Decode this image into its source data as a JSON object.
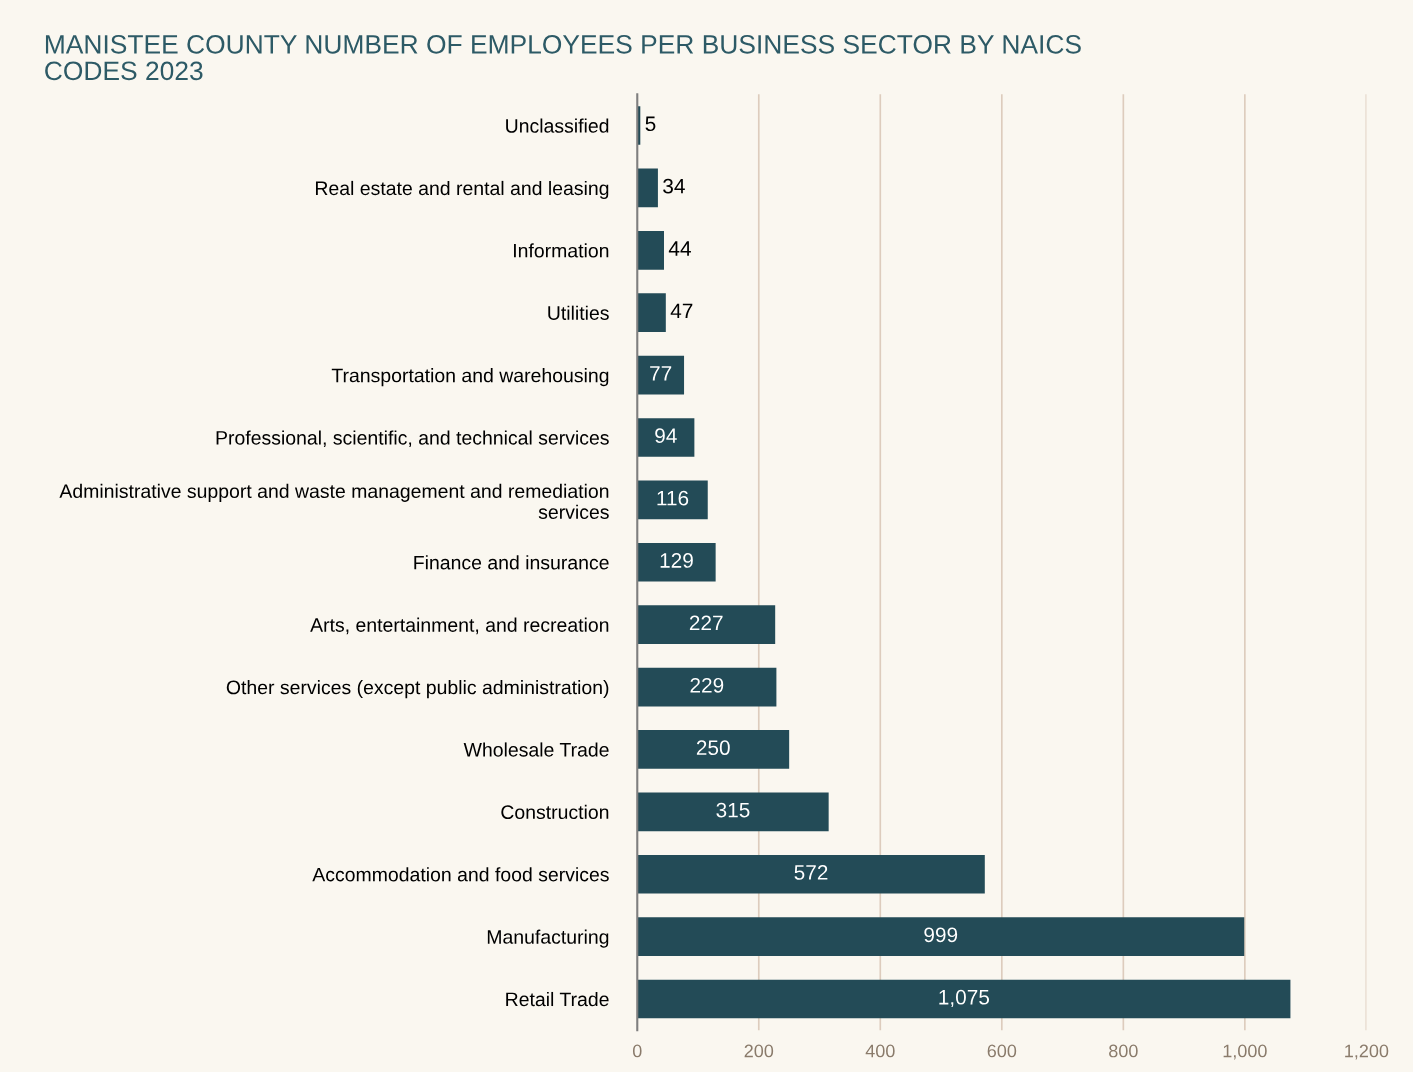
{
  "chart_data": {
    "type": "bar",
    "orientation": "horizontal",
    "title": "MANISTEE COUNTY NUMBER OF EMPLOYEES PER BUSINESS SECTOR BY NAICS CODES 2023",
    "categories": [
      "Unclassified",
      "Real estate and rental and leasing",
      "Information",
      "Utilities",
      "Transportation and warehousing",
      "Professional, scientific, and technical services",
      "Administrative support and waste management and remediation services",
      "Finance and insurance",
      "Arts, entertainment, and recreation",
      "Other services (except public administration)",
      "Wholesale Trade",
      "Construction",
      "Accommodation and food services",
      "Manufacturing",
      "Retail Trade"
    ],
    "values": [
      5,
      34,
      44,
      47,
      77,
      94,
      116,
      129,
      227,
      229,
      250,
      315,
      572,
      999,
      1075
    ],
    "value_labels": [
      "5",
      "34",
      "44",
      "47",
      "77",
      "94",
      "116",
      "129",
      "227",
      "229",
      "250",
      "315",
      "572",
      "999",
      "1,075"
    ],
    "color": "#234b57",
    "xlim": [
      0,
      1200
    ],
    "xticks": [
      0,
      200,
      400,
      600,
      800,
      {
        "value": 1000,
        "label": "1,000"
      },
      {
        "value": 1200,
        "label": "1,200"
      }
    ],
    "grid": "x"
  }
}
